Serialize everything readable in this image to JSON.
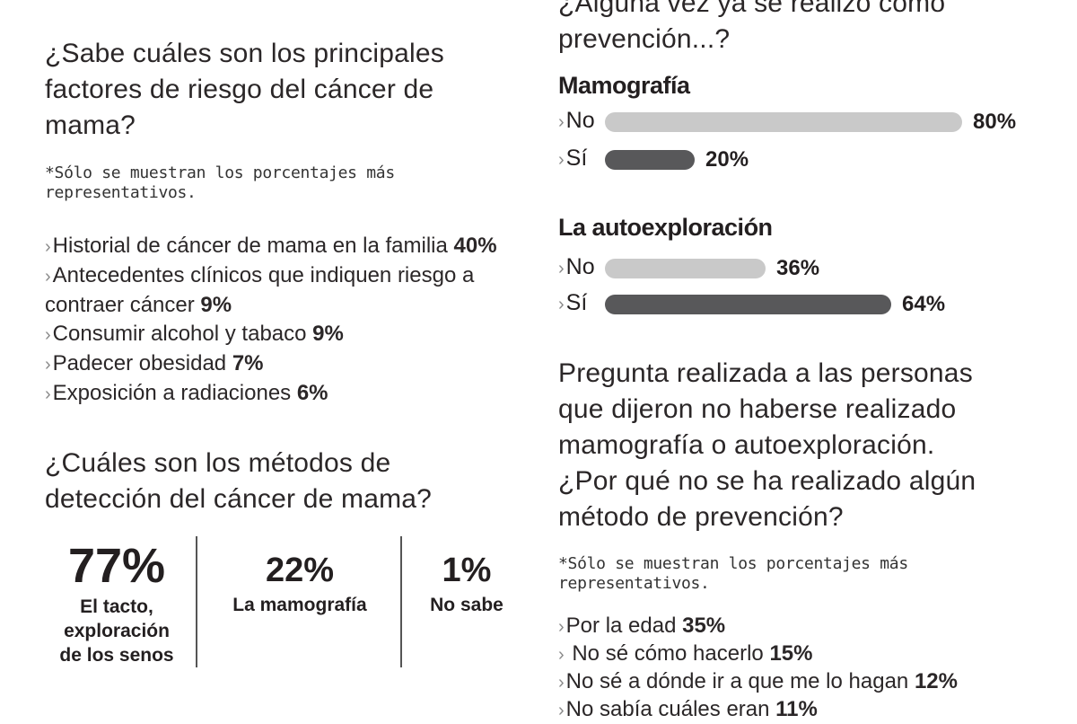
{
  "left": {
    "risk": {
      "question": [
        "¿Sabe cuáles son los principales",
        "factores de riesgo del cáncer de",
        "mama?"
      ],
      "note": [
        "*Sólo se muestran los porcentajes más",
        "representativos."
      ],
      "items": [
        {
          "text": "Historial de cáncer de mama en la familia ",
          "pct": "40%"
        },
        {
          "text": "Antecedentes clínicos que indiquen riesgo a",
          "pct": ""
        },
        {
          "text": "contraer cáncer ",
          "pct": "9%"
        },
        {
          "text": "Consumir alcohol y tabaco ",
          "pct": "9%"
        },
        {
          "text": "Padecer obesidad ",
          "pct": "7%"
        },
        {
          "text": "Exposición a radiaciones ",
          "pct": "6%"
        }
      ]
    },
    "detection": {
      "question": [
        "¿Cuáles son los métodos de",
        "detección del cáncer de mama?"
      ],
      "stats": [
        {
          "value": "77%",
          "caption": [
            "El tacto,",
            "exploración",
            "de los senos"
          ]
        },
        {
          "value": "22%",
          "caption": [
            "La mamografía"
          ]
        },
        {
          "value": "1%",
          "caption": [
            "No sabe"
          ]
        }
      ]
    }
  },
  "right": {
    "top_question": [
      "¿Alguna vez ya se realizó como",
      "prevención...?"
    ],
    "mamografia": {
      "title": "Mamografía",
      "rows": [
        {
          "label": "No",
          "value": "80%",
          "fraction": 0.8
        },
        {
          "label": "Sí",
          "value": "20%",
          "fraction": 0.2
        }
      ]
    },
    "autoexploracion": {
      "title": "La autoexploración",
      "rows": [
        {
          "label": "No",
          "value": "36%",
          "fraction": 0.36
        },
        {
          "label": "Sí",
          "value": "64%",
          "fraction": 0.64
        }
      ]
    },
    "why": {
      "question": [
        "Pregunta realizada a las personas",
        "que dijeron no haberse realizado",
        "mamografía o autoexploración.",
        "¿Por qué no se ha realizado algún",
        "método de prevención?"
      ],
      "note": [
        "*Sólo se muestran los porcentajes más",
        "representativos."
      ],
      "items": [
        {
          "text": "Por la edad ",
          "pct": "35%"
        },
        {
          "text": " No sé cómo hacerlo ",
          "pct": "15%"
        },
        {
          "text": "No sé a dónde ir a que me lo hagan ",
          "pct": "12%"
        },
        {
          "text": "No sabía cuáles eran ",
          "pct": "11%"
        }
      ]
    }
  },
  "colors": {
    "light_bar": "#c9c9c9",
    "dark_bar": "#58585a"
  }
}
